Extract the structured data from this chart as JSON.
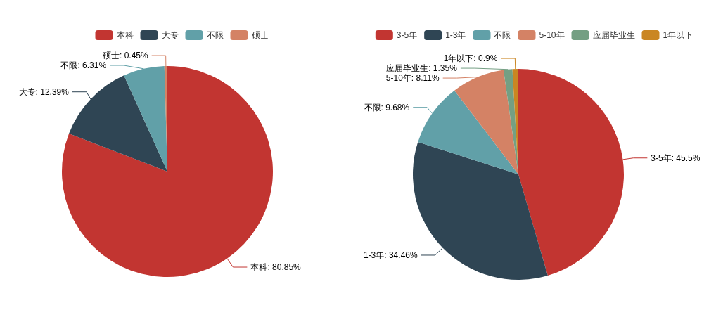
{
  "chart_data": [
    {
      "type": "pie",
      "categories": [
        "本科",
        "大专",
        "不限",
        "硕士"
      ],
      "values": [
        80.85,
        12.39,
        6.31,
        0.45
      ],
      "colors": [
        "#c23531",
        "#2f4554",
        "#61a0a8",
        "#d48265"
      ],
      "legend": "top",
      "value_labels": [
        "本科: 80.85%",
        "大专: 12.39%",
        "不限: 6.31%",
        "硕士: 0.45%"
      ]
    },
    {
      "type": "pie",
      "categories": [
        "3-5年",
        "1-3年",
        "不限",
        "5-10年",
        "应届毕业生",
        "1年以下"
      ],
      "values": [
        45.5,
        34.46,
        9.68,
        8.11,
        1.35,
        0.9
      ],
      "colors": [
        "#c23531",
        "#2f4554",
        "#61a0a8",
        "#d48265",
        "#749f83",
        "#ca8622"
      ],
      "legend": "top",
      "value_labels": [
        "3-5年: 45.5%",
        "1-3年: 34.46%",
        "不限: 9.68%",
        "5-10年: 8.11%",
        "应届毕业生: 1.35%",
        "1年以下: 0.9%"
      ]
    }
  ]
}
